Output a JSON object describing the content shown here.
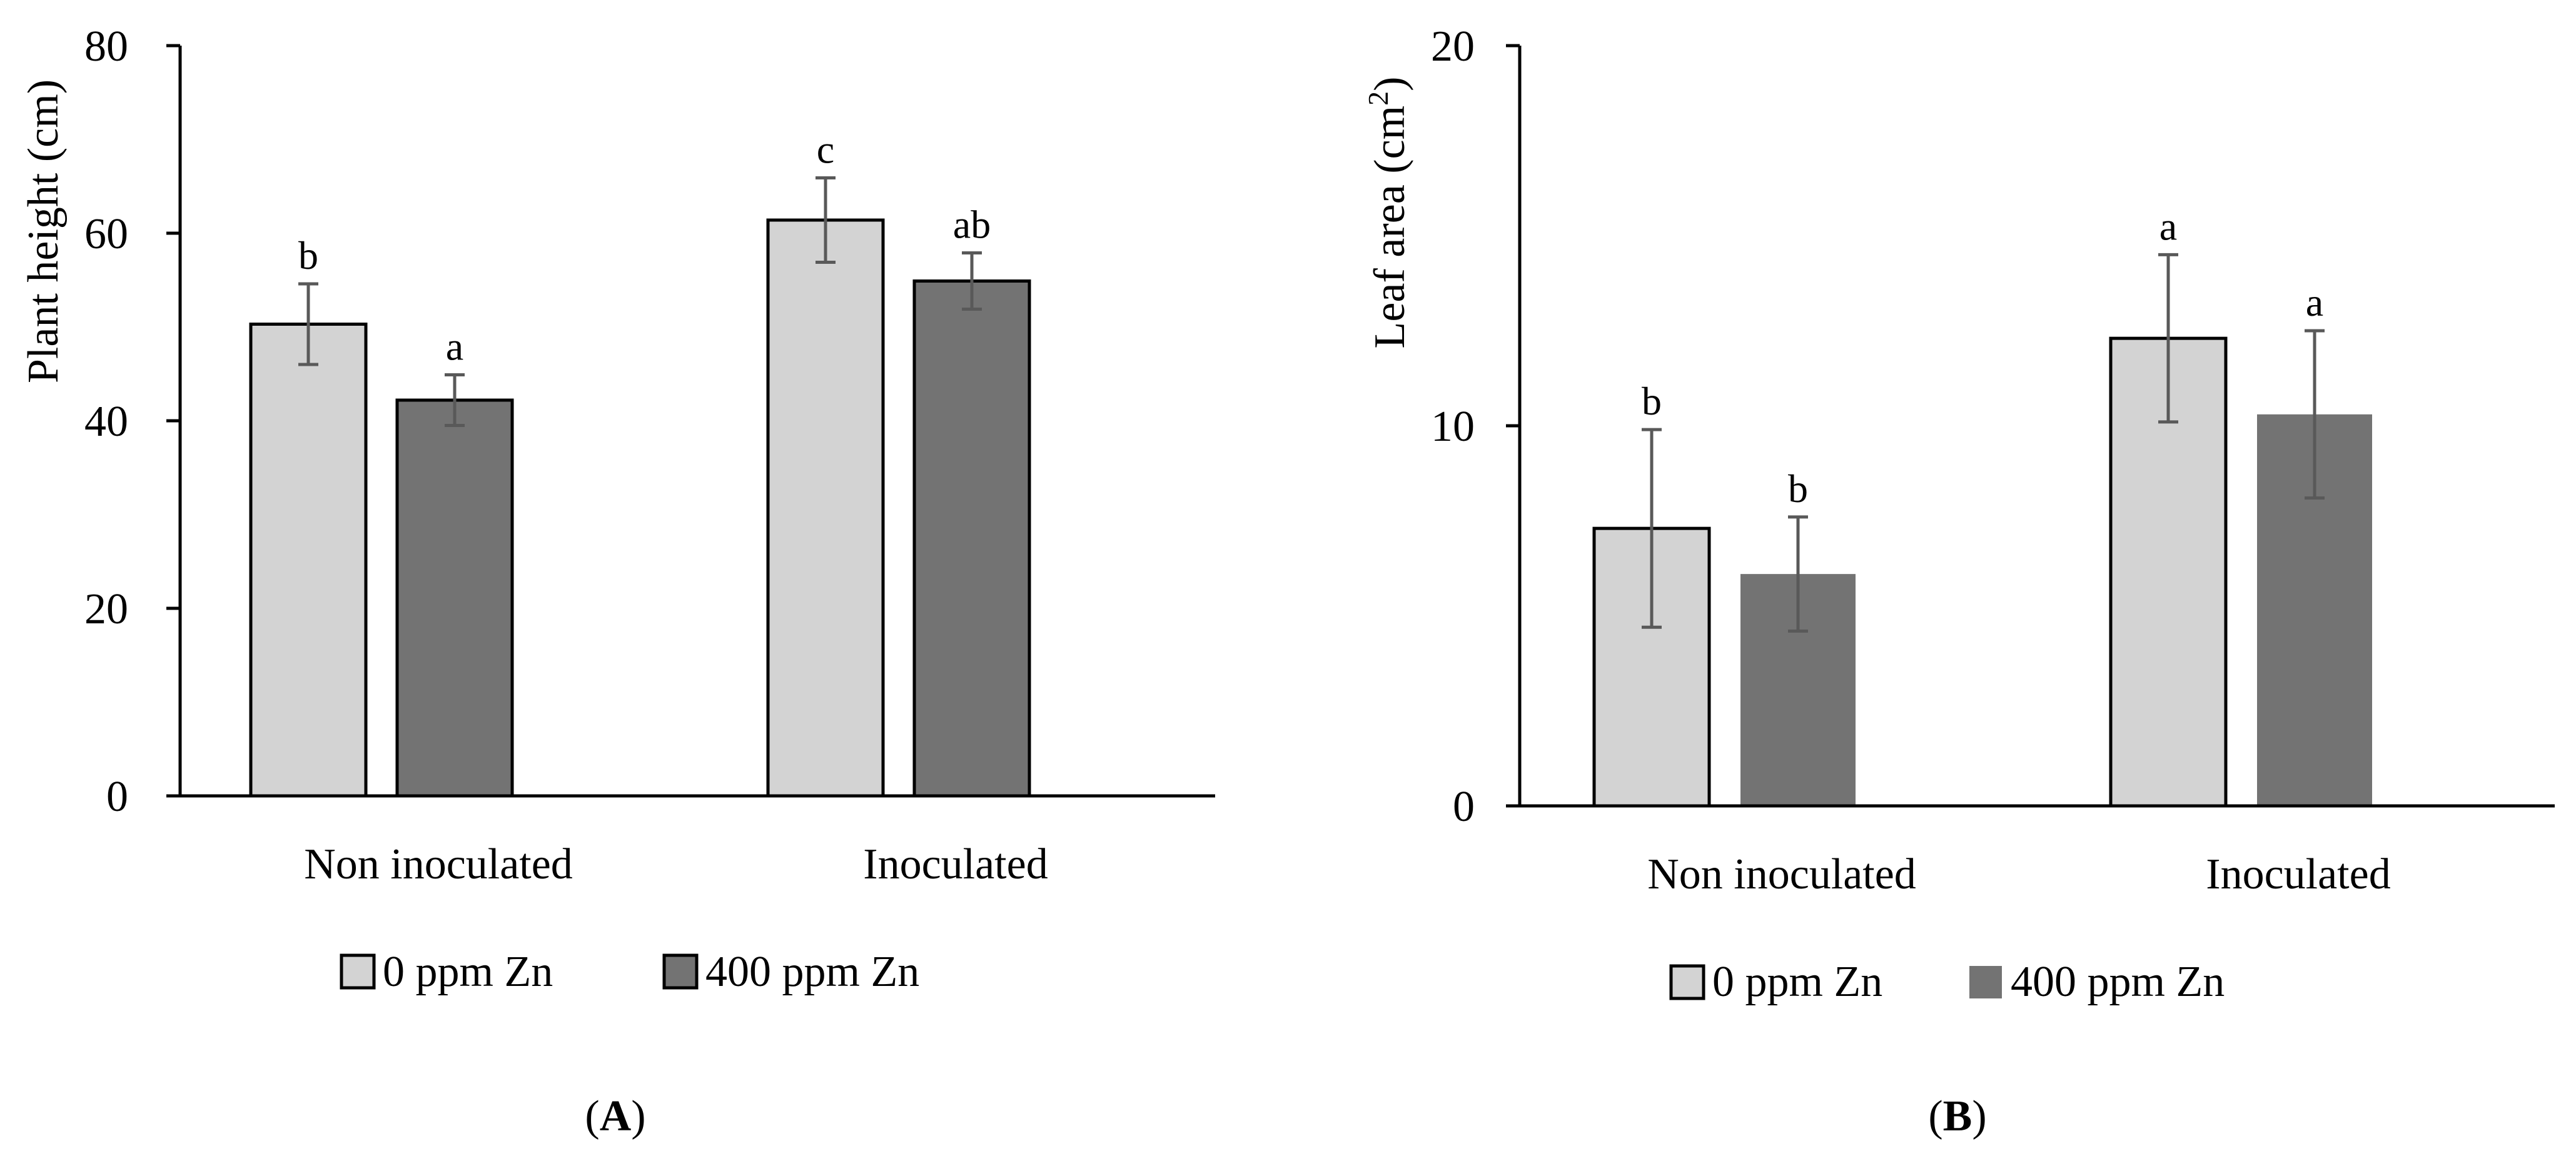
{
  "colors": {
    "light_bar": "#d3d3d3",
    "dark_bar": "#737373",
    "error_bar": "#595959",
    "axis": "#000000"
  },
  "chart_data": [
    {
      "type": "bar",
      "panel": "(A)",
      "panel_letter": "A",
      "ylabel": "Plant height (cm)",
      "ylim": [
        0,
        80
      ],
      "yticks": [
        0,
        20,
        40,
        60,
        80
      ],
      "ytick_labels": [
        "0",
        "20",
        "40",
        "60",
        "80"
      ],
      "categories": [
        "Non inoculated",
        "Inoculated"
      ],
      "series": [
        {
          "name": "0 ppm Zn",
          "values": [
            50.3,
            61.4
          ],
          "errors": [
            4.3,
            4.5
          ],
          "letters": [
            "b",
            "c"
          ],
          "outlined": true
        },
        {
          "name": "400 ppm Zn",
          "values": [
            42.2,
            54.9
          ],
          "errors": [
            2.7,
            3.0
          ],
          "letters": [
            "a",
            "ab"
          ],
          "outlined": true
        }
      ],
      "legend": [
        "0 ppm Zn",
        "400 ppm Zn"
      ],
      "legend_position": "bottom"
    },
    {
      "type": "bar",
      "panel": "(B)",
      "panel_letter": "B",
      "ylabel": "Leaf area (cm²)",
      "ylabel_main": "Leaf area (cm",
      "ylabel_sup": "2",
      "ylabel_end": ")",
      "ylim": [
        0,
        20
      ],
      "yticks": [
        0,
        10,
        20
      ],
      "ytick_labels": [
        "0",
        "10",
        "20"
      ],
      "categories": [
        "Non inoculated",
        "Inoculated"
      ],
      "series": [
        {
          "name": "0 ppm Zn",
          "values": [
            7.3,
            12.3
          ],
          "errors": [
            2.6,
            2.2
          ],
          "letters": [
            "b",
            "a"
          ],
          "outlined": true
        },
        {
          "name": "400 ppm Zn",
          "values": [
            6.1,
            10.3
          ],
          "errors": [
            1.5,
            2.2
          ],
          "letters": [
            "b",
            "a"
          ],
          "outlined": false
        }
      ],
      "legend": [
        "0 ppm Zn",
        "400 ppm Zn"
      ],
      "legend_position": "bottom"
    }
  ]
}
